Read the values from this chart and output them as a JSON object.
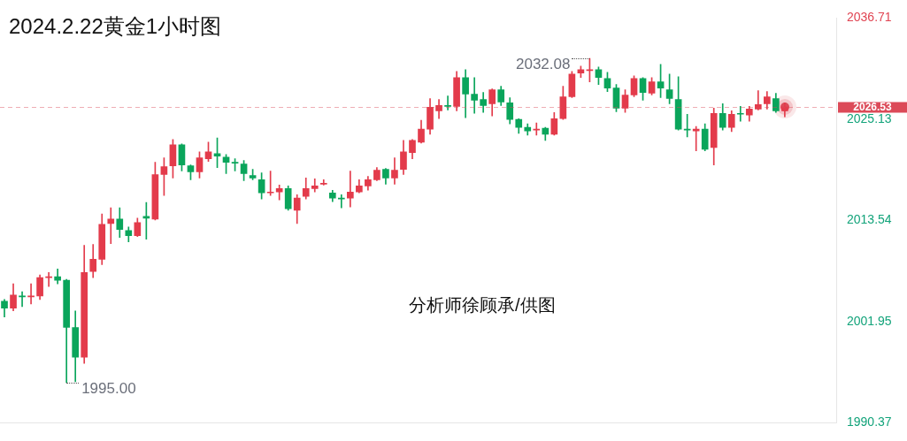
{
  "chart_data": {
    "type": "candlestick",
    "title": "2024.2.22黄金1小时图",
    "categories": [
      null,
      null,
      null,
      null,
      null,
      null,
      null,
      null,
      null,
      null,
      null,
      null,
      null,
      null,
      null,
      null,
      null,
      null,
      null,
      null,
      null,
      null,
      null,
      null,
      null,
      null,
      null,
      null,
      null,
      null,
      null,
      null,
      null,
      null,
      null,
      null,
      null,
      null,
      null,
      null,
      null,
      null,
      null,
      null,
      null,
      null,
      null,
      null,
      null,
      null,
      null,
      null,
      null,
      null,
      null,
      null,
      null,
      null,
      null,
      null,
      null,
      null,
      null,
      null,
      null,
      null,
      null,
      null,
      null,
      null,
      null,
      null,
      null,
      null,
      null,
      null,
      null,
      null,
      null,
      null,
      null,
      null,
      null,
      null,
      null,
      null,
      null,
      null,
      null
    ],
    "ohlc": [
      [
        2004.3,
        2004.5,
        2002.5,
        2003.5
      ],
      [
        2003.5,
        2006.3,
        2003.2,
        2005.0
      ],
      [
        2004.9,
        2005.4,
        2003.7,
        2004.8
      ],
      [
        2004.8,
        2006.3,
        2004.0,
        2004.9
      ],
      [
        2004.9,
        2007.3,
        2004.5,
        2007.0
      ],
      [
        2007.0,
        2007.6,
        2006.0,
        2007.1
      ],
      [
        2007.1,
        2008.0,
        2006.3,
        2006.7
      ],
      [
        2006.7,
        2006.8,
        1995.0,
        2001.3
      ],
      [
        2001.3,
        2003.2,
        1995.1,
        1997.9
      ],
      [
        1997.9,
        2010.7,
        1997.2,
        2007.6
      ],
      [
        2007.7,
        2010.8,
        2007.0,
        2009.1
      ],
      [
        2009.1,
        2014.3,
        2008.5,
        2013.1
      ],
      [
        2013.2,
        2015.0,
        2010.9,
        2013.7
      ],
      [
        2013.7,
        2015.0,
        2011.6,
        2012.5
      ],
      [
        2012.4,
        2012.8,
        2011.1,
        2011.8
      ],
      [
        2011.8,
        2013.8,
        2011.7,
        2013.3
      ],
      [
        2014.0,
        2015.6,
        2011.4,
        2013.8
      ],
      [
        2013.7,
        2020.2,
        2013.6,
        2018.8
      ],
      [
        2018.8,
        2020.7,
        2016.4,
        2019.7
      ],
      [
        2019.8,
        2022.8,
        2018.4,
        2022.2
      ],
      [
        2022.2,
        2022.3,
        2019.2,
        2019.9
      ],
      [
        2019.8,
        2019.9,
        2018.2,
        2019.1
      ],
      [
        2019.1,
        2021.4,
        2018.4,
        2020.7
      ],
      [
        2020.6,
        2022.5,
        2020.3,
        2021.4
      ],
      [
        2021.2,
        2023.0,
        2019.6,
        2020.9
      ],
      [
        2020.8,
        2021.1,
        2018.9,
        2020.2
      ],
      [
        2020.2,
        2020.6,
        2019.2,
        2020.1
      ],
      [
        2020.0,
        2020.4,
        2018.1,
        2018.9
      ],
      [
        2018.7,
        2019.4,
        2018.2,
        2018.4
      ],
      [
        2018.2,
        2019.0,
        2016.0,
        2016.7
      ],
      [
        2016.7,
        2019.2,
        2016.4,
        2016.8
      ],
      [
        2016.8,
        2017.6,
        2015.9,
        2017.2
      ],
      [
        2017.2,
        2017.5,
        2014.7,
        2014.9
      ],
      [
        2014.7,
        2016.5,
        2013.2,
        2016.1
      ],
      [
        2016.3,
        2018.4,
        2016.0,
        2017.2
      ],
      [
        2017.2,
        2018.3,
        2016.8,
        2017.5
      ],
      [
        2017.7,
        2018.2,
        2017.6,
        2017.8
      ],
      [
        2016.7,
        2017.0,
        2015.7,
        2016.1
      ],
      [
        2016.1,
        2016.5,
        2015.0,
        2016.0
      ],
      [
        2016.1,
        2019.2,
        2015.1,
        2016.8
      ],
      [
        2016.8,
        2018.2,
        2016.7,
        2017.5
      ],
      [
        2017.5,
        2018.6,
        2017.0,
        2018.2
      ],
      [
        2018.2,
        2019.6,
        2018.1,
        2019.3
      ],
      [
        2019.4,
        2019.5,
        2017.7,
        2018.4
      ],
      [
        2018.4,
        2020.7,
        2017.7,
        2019.3
      ],
      [
        2019.4,
        2022.7,
        2018.8,
        2021.4
      ],
      [
        2021.3,
        2022.8,
        2020.6,
        2022.7
      ],
      [
        2022.5,
        2025.0,
        2022.4,
        2024.0
      ],
      [
        2024.0,
        2027.5,
        2023.4,
        2026.5
      ],
      [
        2026.1,
        2027.4,
        2025.2,
        2026.7
      ],
      [
        2026.7,
        2027.8,
        2026.2,
        2026.6
      ],
      [
        2026.6,
        2030.6,
        2026.1,
        2029.9
      ],
      [
        2029.9,
        2030.8,
        2025.3,
        2028.0
      ],
      [
        2028.0,
        2029.9,
        2025.8,
        2027.3
      ],
      [
        2027.4,
        2028.2,
        2025.9,
        2026.7
      ],
      [
        2026.9,
        2028.6,
        2025.5,
        2028.5
      ],
      [
        2028.5,
        2028.9,
        2026.7,
        2027.1
      ],
      [
        2027.0,
        2027.6,
        2024.6,
        2025.1
      ],
      [
        2025.1,
        2025.2,
        2023.5,
        2024.2
      ],
      [
        2024.2,
        2024.6,
        2023.3,
        2023.8
      ],
      [
        2023.9,
        2024.7,
        2023.3,
        2024.0
      ],
      [
        2024.1,
        2024.2,
        2022.7,
        2023.4
      ],
      [
        2023.4,
        2025.9,
        2023.3,
        2025.2
      ],
      [
        2025.2,
        2028.9,
        2025.1,
        2027.7
      ],
      [
        2027.7,
        2030.6,
        2027.6,
        2030.3
      ],
      [
        2030.4,
        2031.2,
        2029.9,
        2030.8
      ],
      [
        2030.7,
        2032.08,
        2029.4,
        2030.8
      ],
      [
        2030.8,
        2031.1,
        2029.1,
        2029.9
      ],
      [
        2029.8,
        2030.5,
        2028.3,
        2028.7
      ],
      [
        2028.7,
        2029.1,
        2026.0,
        2026.4
      ],
      [
        2026.4,
        2028.5,
        2025.9,
        2027.9
      ],
      [
        2027.9,
        2030.1,
        2027.7,
        2029.8
      ],
      [
        2029.8,
        2029.9,
        2027.3,
        2028.2
      ],
      [
        2028.1,
        2029.9,
        2027.9,
        2029.4
      ],
      [
        2029.4,
        2031.4,
        2027.6,
        2028.7
      ],
      [
        2028.5,
        2030.3,
        2026.9,
        2027.5
      ],
      [
        2027.4,
        2030.0,
        2023.9,
        2024.0
      ],
      [
        2024.0,
        2025.7,
        2023.1,
        2023.9
      ],
      [
        2023.8,
        2024.3,
        2021.5,
        2024.0
      ],
      [
        2024.0,
        2024.6,
        2021.5,
        2021.7
      ],
      [
        2021.9,
        2026.4,
        2019.9,
        2025.8
      ],
      [
        2025.8,
        2026.9,
        2023.9,
        2024.2
      ],
      [
        2024.2,
        2026.1,
        2023.7,
        2025.7
      ],
      [
        2025.8,
        2026.6,
        2024.9,
        2025.7
      ],
      [
        2025.6,
        2026.6,
        2024.9,
        2026.3
      ],
      [
        2026.3,
        2028.4,
        2026.2,
        2026.8
      ],
      [
        2026.9,
        2028.3,
        2026.3,
        2027.7
      ],
      [
        2027.5,
        2028.1,
        2025.9,
        2026.1
      ],
      [
        2026.1,
        2027.0,
        2025.4,
        2026.53
      ]
    ],
    "colors": [
      "#0aa55b",
      "#e33b4b",
      "#0aa55b",
      "#e33b4b",
      "#e33b4b",
      "#e33b4b",
      "#0aa55b",
      "#0aa55b",
      "#0aa55b",
      "#e33b4b",
      "#e33b4b",
      "#e33b4b",
      "#e33b4b",
      "#0aa55b",
      "#0aa55b",
      "#e33b4b",
      "#0aa55b",
      "#e33b4b",
      "#e33b4b",
      "#e33b4b",
      "#0aa55b",
      "#0aa55b",
      "#e33b4b",
      "#e33b4b",
      "#0aa55b",
      "#0aa55b",
      "#0aa55b",
      "#0aa55b",
      "#0aa55b",
      "#0aa55b",
      "#e33b4b",
      "#e33b4b",
      "#0aa55b",
      "#e33b4b",
      "#e33b4b",
      "#e33b4b",
      "#e33b4b",
      "#0aa55b",
      "#0aa55b",
      "#e33b4b",
      "#e33b4b",
      "#e33b4b",
      "#e33b4b",
      "#0aa55b",
      "#e33b4b",
      "#e33b4b",
      "#e33b4b",
      "#e33b4b",
      "#e33b4b",
      "#e33b4b",
      "#0aa55b",
      "#e33b4b",
      "#0aa55b",
      "#0aa55b",
      "#0aa55b",
      "#e33b4b",
      "#0aa55b",
      "#0aa55b",
      "#0aa55b",
      "#0aa55b",
      "#e33b4b",
      "#0aa55b",
      "#e33b4b",
      "#e33b4b",
      "#e33b4b",
      "#e33b4b",
      "#e33b4b",
      "#0aa55b",
      "#0aa55b",
      "#0aa55b",
      "#e33b4b",
      "#e33b4b",
      "#0aa55b",
      "#e33b4b",
      "#0aa55b",
      "#0aa55b",
      "#0aa55b",
      "#0aa55b",
      "#e33b4b",
      "#0aa55b",
      "#e33b4b",
      "#0aa55b",
      "#e33b4b",
      "#0aa55b",
      "#e33b4b",
      "#e33b4b",
      "#e33b4b",
      "#0aa55b",
      "#e33b4b"
    ],
    "ylim": [
      1990.37,
      2036.71
    ],
    "yticks": [
      1990.37,
      2001.95,
      2013.54,
      2025.13,
      2036.71
    ],
    "tick_labels": "y",
    "ref_lines": [
      {
        "axis": "y",
        "value": 2026.53,
        "label": "2026.53",
        "color": "#dc4a58",
        "line_style": "dashed"
      }
    ],
    "annotations": [
      "1995.00",
      "2032.08",
      "分析师徐顾承/供图"
    ]
  }
}
